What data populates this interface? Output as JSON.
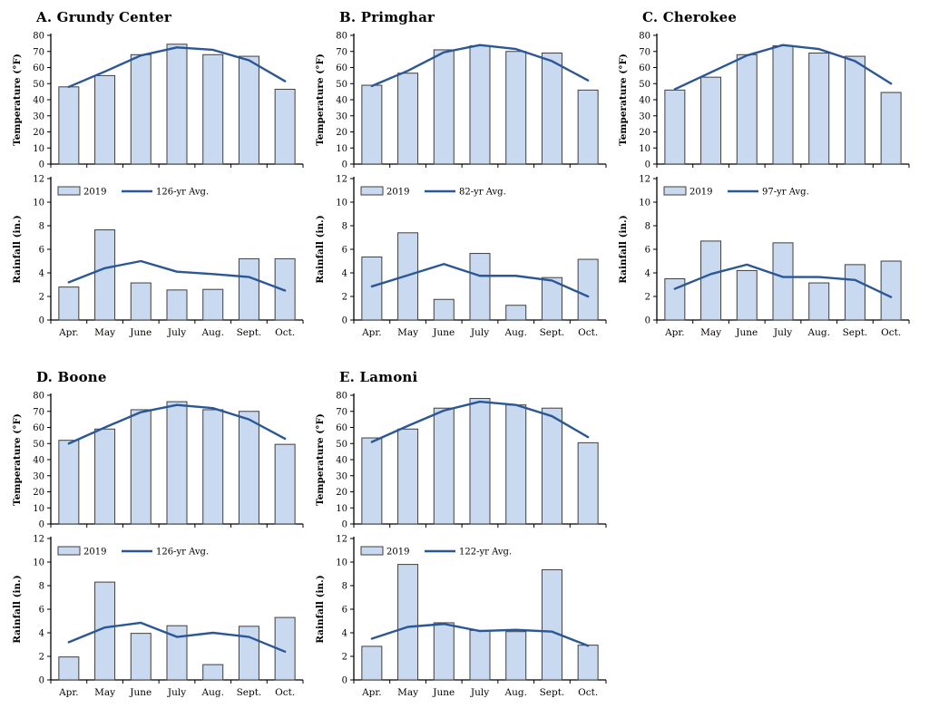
{
  "categories": [
    "Apr.",
    "May",
    "June",
    "July",
    "Aug.",
    "Sept.",
    "Oct."
  ],
  "colors": {
    "bar_fill": "#C8D9F0",
    "bar_border": "#3F3F3F",
    "line": "#2B5796",
    "axis": "#000000",
    "background": "#FFFFFF"
  },
  "chart_data": [
    {
      "title": "A. Grundy Center",
      "temperature": {
        "type": "bar",
        "ylabel": "Temperature (°F)",
        "ylim": [
          0,
          80
        ],
        "ytick_step": 10,
        "grid": false,
        "series": [
          {
            "name": "2019",
            "style": "bar",
            "values": [
              48,
              55,
              68,
              74.5,
              68,
              67,
              46.5
            ]
          },
          {
            "name": "126-yr Avg.",
            "style": "line",
            "values": [
              48,
              57.5,
              67.5,
              72.5,
              71,
              64.5,
              51.5
            ]
          }
        ]
      },
      "rainfall": {
        "type": "bar",
        "ylabel": "Rainfall (in.)",
        "ylim": [
          0,
          12
        ],
        "ytick_step": 2,
        "grid": false,
        "legend": {
          "position": "top-left",
          "bar_label": "2019",
          "line_label": "126-yr Avg."
        },
        "series": [
          {
            "name": "2019",
            "style": "bar",
            "values": [
              2.8,
              7.65,
              3.15,
              2.55,
              2.6,
              5.2,
              5.2
            ]
          },
          {
            "name": "126-yr Avg.",
            "style": "line",
            "values": [
              3.2,
              4.4,
              5.0,
              4.1,
              3.9,
              3.65,
              2.5
            ]
          }
        ]
      }
    },
    {
      "title": "B. Primghar",
      "temperature": {
        "type": "bar",
        "ylabel": "Temperature (°F)",
        "ylim": [
          0,
          80
        ],
        "ytick_step": 10,
        "grid": false,
        "series": [
          {
            "name": "2019",
            "style": "bar",
            "values": [
              49,
              56.5,
              71,
              73.5,
              70,
              69,
              46
            ]
          },
          {
            "name": "82-yr Avg.",
            "style": "line",
            "values": [
              48.5,
              58,
              69.5,
              74,
              71.5,
              64,
              52
            ]
          }
        ]
      },
      "rainfall": {
        "type": "bar",
        "ylabel": "Rainfall (in.)",
        "ylim": [
          0,
          12
        ],
        "ytick_step": 2,
        "grid": false,
        "legend": {
          "position": "top-left",
          "bar_label": "2019",
          "line_label": "82-yr Avg."
        },
        "series": [
          {
            "name": "2019",
            "style": "bar",
            "values": [
              5.35,
              7.4,
              1.75,
              5.65,
              1.25,
              3.6,
              5.15
            ]
          },
          {
            "name": "82-yr Avg.",
            "style": "line",
            "values": [
              2.85,
              3.8,
              4.75,
              3.75,
              3.75,
              3.35,
              2.0
            ]
          }
        ]
      }
    },
    {
      "title": "C. Cherokee",
      "temperature": {
        "type": "bar",
        "ylabel": "Temperature (°F)",
        "ylim": [
          0,
          80
        ],
        "ytick_step": 10,
        "grid": false,
        "series": [
          {
            "name": "2019",
            "style": "bar",
            "values": [
              46,
              54,
              68,
              73.5,
              69,
              67,
              44.5
            ]
          },
          {
            "name": "97-yr Avg.",
            "style": "line",
            "values": [
              46.5,
              57,
              67.5,
              74,
              71.5,
              64,
              50
            ]
          }
        ]
      },
      "rainfall": {
        "type": "bar",
        "ylabel": "Rainfall (in.)",
        "ylim": [
          0,
          12
        ],
        "ytick_step": 2,
        "grid": false,
        "legend": {
          "position": "top-left",
          "bar_label": "2019",
          "line_label": "97-yr Avg."
        },
        "series": [
          {
            "name": "2019",
            "style": "bar",
            "values": [
              3.5,
              6.7,
              4.2,
              6.55,
              3.15,
              4.7,
              5.0
            ]
          },
          {
            "name": "97-yr Avg.",
            "style": "line",
            "values": [
              2.65,
              3.9,
              4.7,
              3.65,
              3.65,
              3.4,
              1.95
            ]
          }
        ]
      }
    },
    {
      "title": "D. Boone",
      "temperature": {
        "type": "bar",
        "ylabel": "Temperature (°F)",
        "ylim": [
          0,
          80
        ],
        "ytick_step": 10,
        "grid": false,
        "series": [
          {
            "name": "2019",
            "style": "bar",
            "values": [
              52,
              59,
              71,
              76,
              71,
              70,
              49.5
            ]
          },
          {
            "name": "126-yr Avg.",
            "style": "line",
            "values": [
              50,
              60,
              69.5,
              74,
              72,
              65,
              53
            ]
          }
        ]
      },
      "rainfall": {
        "type": "bar",
        "ylabel": "Rainfall (in.)",
        "ylim": [
          0,
          12
        ],
        "ytick_step": 2,
        "grid": false,
        "legend": {
          "position": "top-left",
          "bar_label": "2019",
          "line_label": "126-yr Avg."
        },
        "series": [
          {
            "name": "2019",
            "style": "bar",
            "values": [
              1.95,
              8.3,
              3.95,
              4.6,
              1.3,
              4.55,
              5.3
            ]
          },
          {
            "name": "126-yr Avg.",
            "style": "line",
            "values": [
              3.2,
              4.45,
              4.85,
              3.65,
              4.0,
              3.65,
              2.4
            ]
          }
        ]
      }
    },
    {
      "title": "E. Lamoni",
      "temperature": {
        "type": "bar",
        "ylabel": "Temperature (°F)",
        "ylim": [
          0,
          80
        ],
        "ytick_step": 10,
        "grid": false,
        "series": [
          {
            "name": "2019",
            "style": "bar",
            "values": [
              53.5,
              59,
              72,
              78,
              74,
              72,
              50.5
            ]
          },
          {
            "name": "122-yr Avg.",
            "style": "line",
            "values": [
              51,
              61,
              70.5,
              76,
              74,
              67,
              54
            ]
          }
        ]
      },
      "rainfall": {
        "type": "bar",
        "ylabel": "Rainfall (in.)",
        "ylim": [
          0,
          12
        ],
        "ytick_step": 2,
        "grid": false,
        "legend": {
          "position": "top-left",
          "bar_label": "2019",
          "line_label": "122-yr Avg."
        },
        "series": [
          {
            "name": "2019",
            "style": "bar",
            "values": [
              2.85,
              9.8,
              4.85,
              4.2,
              4.1,
              9.35,
              2.95
            ]
          },
          {
            "name": "122-yr Avg.",
            "style": "line",
            "values": [
              3.5,
              4.5,
              4.75,
              4.15,
              4.25,
              4.1,
              2.9
            ]
          }
        ]
      }
    }
  ]
}
